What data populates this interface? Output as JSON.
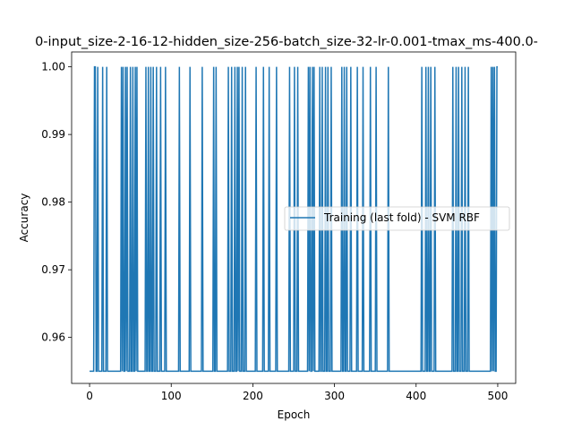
{
  "chart_data": {
    "type": "line",
    "title": "0-input_size-2-16-12-hidden_size-256-batch_size-32-lr-0.001-tmax_ms-400.0-",
    "xlabel": "Epoch",
    "ylabel": "Accuracy",
    "xlim": [
      -22,
      522
    ],
    "ylim": [
      0.9532,
      1.0022
    ],
    "xticks": [
      0,
      100,
      200,
      300,
      400,
      500
    ],
    "yticks": [
      0.96,
      0.97,
      0.98,
      0.99,
      1.0
    ],
    "ytick_labels": [
      "0.96",
      "0.97",
      "0.98",
      "0.99",
      "1.00"
    ],
    "grid": false,
    "legend_position": "center-right",
    "low_value": 0.955,
    "high_value": 1.0,
    "series": [
      {
        "name": "Training (last fold) - SVM RBF",
        "color": "#1f77b4",
        "x_range": [
          0,
          500
        ],
        "high_epochs": [
          6,
          7,
          10,
          16,
          21,
          39,
          41,
          44,
          46,
          50,
          53,
          56,
          58,
          69,
          72,
          75,
          78,
          82,
          87,
          93,
          110,
          123,
          138,
          152,
          155,
          170,
          174,
          178,
          181,
          183,
          187,
          191,
          204,
          213,
          220,
          229,
          245,
          251,
          255,
          268,
          270,
          273,
          275,
          282,
          285,
          289,
          292,
          296,
          309,
          312,
          315,
          320,
          328,
          335,
          344,
          351,
          366,
          407,
          412,
          415,
          418,
          423,
          445,
          449,
          452,
          456,
          460,
          464,
          492,
          494,
          496,
          499,
          500
        ]
      }
    ]
  }
}
